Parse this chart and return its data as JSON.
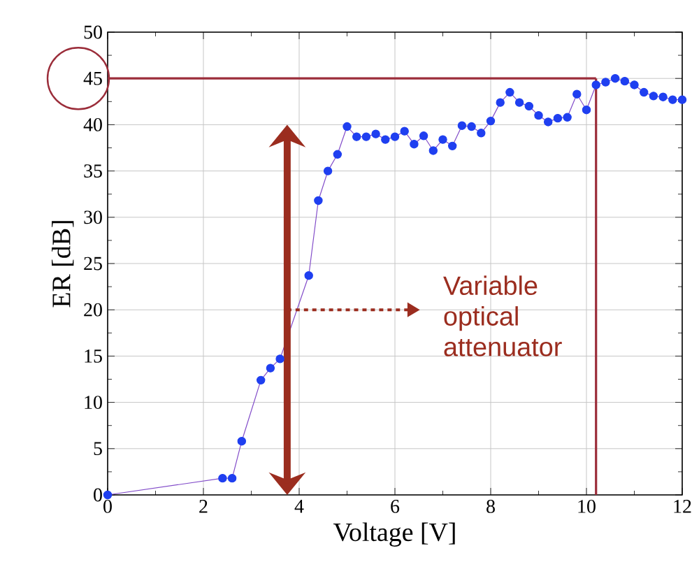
{
  "chart_data": {
    "type": "line",
    "xlabel": "Voltage [V]",
    "ylabel": "ER [dB]",
    "xlim": [
      0,
      12
    ],
    "ylim": [
      0,
      50
    ],
    "xticks": [
      0,
      2,
      4,
      6,
      8,
      10,
      12
    ],
    "yticks": [
      0,
      5,
      10,
      15,
      20,
      25,
      30,
      35,
      40,
      45,
      50
    ],
    "grid": true,
    "marker": "circle",
    "line_style": "solid",
    "series": [
      {
        "color": "#1f3ff0",
        "x": [
          0,
          2.4,
          2.6,
          2.8,
          3.2,
          3.4,
          3.6,
          4.2,
          4.4,
          4.6,
          4.8,
          5.0,
          5.2,
          5.4,
          5.6,
          5.8,
          6.0,
          6.2,
          6.4,
          6.6,
          6.8,
          7.0,
          7.2,
          7.4,
          7.6,
          7.8,
          8.0,
          8.2,
          8.4,
          8.6,
          8.8,
          9.0,
          9.2,
          9.4,
          9.6,
          9.8,
          10.0,
          10.2,
          10.4,
          10.6,
          10.8,
          11.0,
          11.2,
          11.4,
          11.6,
          11.8,
          12.0
        ],
        "values": [
          0,
          1.8,
          1.8,
          5.8,
          12.4,
          13.7,
          14.7,
          23.7,
          31.8,
          35.0,
          36.8,
          39.8,
          38.7,
          38.7,
          39.0,
          38.4,
          38.7,
          39.3,
          37.9,
          38.8,
          37.2,
          38.4,
          37.7,
          39.9,
          39.8,
          39.1,
          40.4,
          42.4,
          43.5,
          42.4,
          42.0,
          41.0,
          40.3,
          40.7,
          40.8,
          43.3,
          41.6,
          44.3,
          44.6,
          45.0,
          44.7,
          44.3,
          43.5,
          43.1,
          43.0,
          42.7,
          42.7
        ]
      }
    ],
    "ref_lines": [
      {
        "axis": "y",
        "value": 45,
        "color": "#9b2d3a"
      },
      {
        "axis": "x",
        "value": 10.2,
        "color": "#9b2d3a"
      }
    ],
    "annotations": [
      "Variable optical attenuator"
    ]
  }
}
